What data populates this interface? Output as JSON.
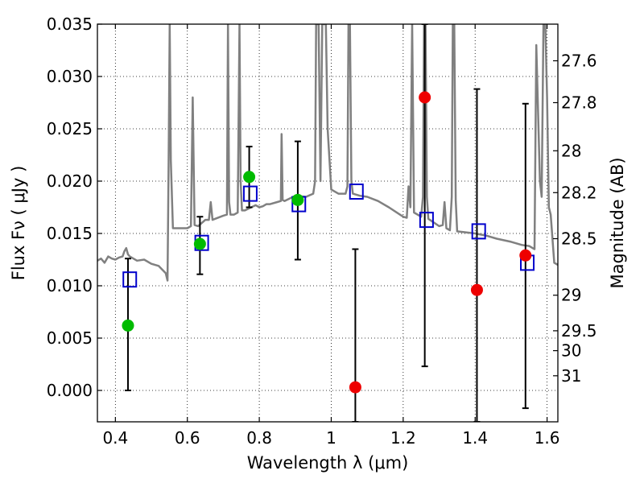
{
  "chart_data": {
    "type": "scatter",
    "xlabel": "Wavelength  λ (μm)",
    "ylabel": "Flux  Fν  ( μJy )",
    "y2label": "Magnitude (AB)",
    "xlim": [
      0.35,
      1.63
    ],
    "ylim": [
      -0.003,
      0.035
    ],
    "grid": true,
    "x_ticks": [
      0.4,
      0.6,
      0.8,
      1.0,
      1.2,
      1.4,
      1.6
    ],
    "x_tick_labels": [
      "0.4",
      "0.6",
      "0.8",
      "1",
      "1.2",
      "1.4",
      "1.6"
    ],
    "y_ticks": [
      0.0,
      0.005,
      0.01,
      0.015,
      0.02,
      0.025,
      0.03,
      0.035
    ],
    "y_tick_labels": [
      "0.000",
      "0.005",
      "0.010",
      "0.015",
      "0.020",
      "0.025",
      "0.030",
      "0.035"
    ],
    "y2_ticks": [
      {
        "flux": 0.0315,
        "label": "27.6"
      },
      {
        "flux": 0.0275,
        "label": "27.8"
      },
      {
        "flux": 0.0229,
        "label": "28"
      },
      {
        "flux": 0.0189,
        "label": "28.2"
      },
      {
        "flux": 0.0145,
        "label": "28.5"
      },
      {
        "flux": 0.0091,
        "label": "29"
      },
      {
        "flux": 0.0057,
        "label": "29.5"
      },
      {
        "flux": 0.0038,
        "label": "30"
      },
      {
        "flux": 0.0014,
        "label": "31"
      }
    ],
    "model_points": {
      "x": [
        0.44,
        0.64,
        0.775,
        0.91,
        1.07,
        1.265,
        1.41,
        1.545
      ],
      "y": [
        0.0106,
        0.0141,
        0.0188,
        0.0178,
        0.019,
        0.0163,
        0.0152,
        0.0122
      ]
    },
    "observed": [
      {
        "x": 0.435,
        "y": 0.0062,
        "err_low": 0.0,
        "err_high": 0.0126,
        "color": "green"
      },
      {
        "x": 0.635,
        "y": 0.014,
        "err_low": 0.0111,
        "err_high": 0.0166,
        "color": "green"
      },
      {
        "x": 0.772,
        "y": 0.0204,
        "err_low": 0.0175,
        "err_high": 0.0233,
        "color": "green"
      },
      {
        "x": 0.907,
        "y": 0.0182,
        "err_low": 0.0125,
        "err_high": 0.0238,
        "color": "green"
      },
      {
        "x": 1.067,
        "y": 0.0003,
        "err_low": -0.003,
        "err_high": 0.0135,
        "color": "red"
      },
      {
        "x": 1.26,
        "y": 0.028,
        "err_low": 0.0023,
        "err_high": 0.035,
        "color": "red"
      },
      {
        "x": 1.405,
        "y": 0.0096,
        "err_low": -0.003,
        "err_high": 0.0288,
        "color": "red"
      },
      {
        "x": 1.54,
        "y": 0.0129,
        "err_low": -0.0017,
        "err_high": 0.0274,
        "color": "red"
      }
    ],
    "spectrum": {
      "x": [
        0.35,
        0.36,
        0.37,
        0.38,
        0.39,
        0.4,
        0.41,
        0.42,
        0.425,
        0.43,
        0.435,
        0.44,
        0.46,
        0.48,
        0.5,
        0.52,
        0.54,
        0.545,
        0.548,
        0.551,
        0.554,
        0.56,
        0.6,
        0.61,
        0.615,
        0.62,
        0.63,
        0.65,
        0.66,
        0.665,
        0.67,
        0.7,
        0.71,
        0.713,
        0.716,
        0.72,
        0.73,
        0.74,
        0.745,
        0.748,
        0.752,
        0.76,
        0.79,
        0.8,
        0.81,
        0.82,
        0.83,
        0.85,
        0.86,
        0.862,
        0.865,
        0.87,
        0.9,
        0.93,
        0.95,
        0.955,
        0.958,
        0.96,
        0.965,
        0.97,
        0.975,
        0.98,
        0.985,
        0.99,
        1.0,
        1.02,
        1.04,
        1.045,
        1.048,
        1.052,
        1.056,
        1.06,
        1.08,
        1.1,
        1.13,
        1.16,
        1.2,
        1.21,
        1.215,
        1.22,
        1.225,
        1.23,
        1.25,
        1.255,
        1.258,
        1.262,
        1.266,
        1.27,
        1.3,
        1.31,
        1.315,
        1.32,
        1.33,
        1.335,
        1.338,
        1.342,
        1.346,
        1.35,
        1.4,
        1.43,
        1.46,
        1.5,
        1.53,
        1.55,
        1.56,
        1.565,
        1.57,
        1.58,
        1.585,
        1.59,
        1.595,
        1.6,
        1.605,
        1.61,
        1.62,
        1.63
      ],
      "y": [
        0.0124,
        0.0126,
        0.0122,
        0.0128,
        0.0126,
        0.0125,
        0.0127,
        0.0128,
        0.0133,
        0.0136,
        0.013,
        0.0128,
        0.0124,
        0.0125,
        0.0121,
        0.0119,
        0.0112,
        0.0105,
        0.022,
        0.035,
        0.022,
        0.0155,
        0.0155,
        0.0157,
        0.028,
        0.0158,
        0.0157,
        0.0163,
        0.0163,
        0.018,
        0.0163,
        0.0167,
        0.0168,
        0.035,
        0.018,
        0.0168,
        0.0168,
        0.017,
        0.035,
        0.02,
        0.0172,
        0.0172,
        0.0177,
        0.0175,
        0.0176,
        0.0178,
        0.0178,
        0.018,
        0.0181,
        0.0245,
        0.0182,
        0.0181,
        0.0186,
        0.0185,
        0.0188,
        0.02,
        0.035,
        0.035,
        0.035,
        0.02,
        0.035,
        0.035,
        0.035,
        0.025,
        0.0192,
        0.0188,
        0.0188,
        0.0195,
        0.035,
        0.035,
        0.02,
        0.0188,
        0.0186,
        0.0185,
        0.0181,
        0.0175,
        0.0166,
        0.0165,
        0.0195,
        0.0175,
        0.035,
        0.017,
        0.0166,
        0.0185,
        0.035,
        0.035,
        0.0185,
        0.0164,
        0.0157,
        0.0158,
        0.018,
        0.0155,
        0.0153,
        0.0185,
        0.035,
        0.035,
        0.0182,
        0.0152,
        0.015,
        0.0148,
        0.0145,
        0.0142,
        0.0139,
        0.0138,
        0.0136,
        0.0135,
        0.033,
        0.02,
        0.0185,
        0.035,
        0.035,
        0.028,
        0.0175,
        0.0168,
        0.0122,
        0.012
      ]
    },
    "colors": {
      "spectrum": "#808080",
      "model_marker": "#0000cc",
      "green": "#00bb00",
      "red": "#ee0000",
      "errorbar": "#000000",
      "grid": "#000000"
    }
  }
}
